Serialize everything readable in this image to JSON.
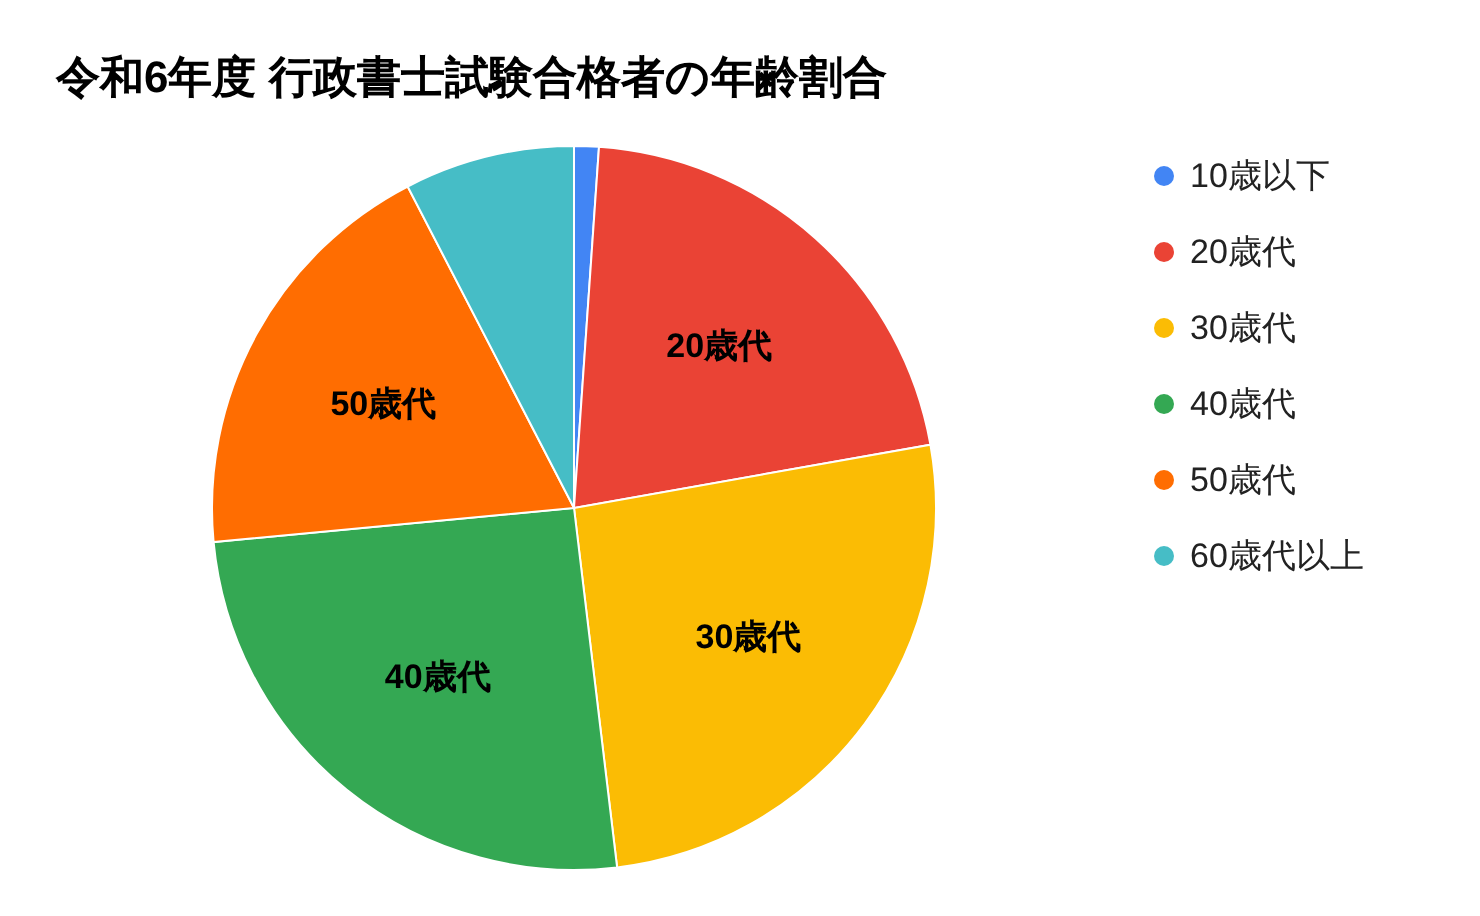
{
  "chart_data": {
    "type": "pie",
    "title": "令和6年度 行政書士試験合格者の年齢割合",
    "categories": [
      "10歳以下",
      "20歳代",
      "30歳代",
      "40歳代",
      "50歳代",
      "60歳代以上"
    ],
    "values": [
      1.1,
      21.1,
      25.9,
      25.4,
      18.9,
      7.6
    ],
    "colors": [
      "#4285f4",
      "#ea4335",
      "#fbbc04",
      "#34a853",
      "#ff6d01",
      "#46bdc6"
    ],
    "legend": "right",
    "marker": "circle"
  }
}
